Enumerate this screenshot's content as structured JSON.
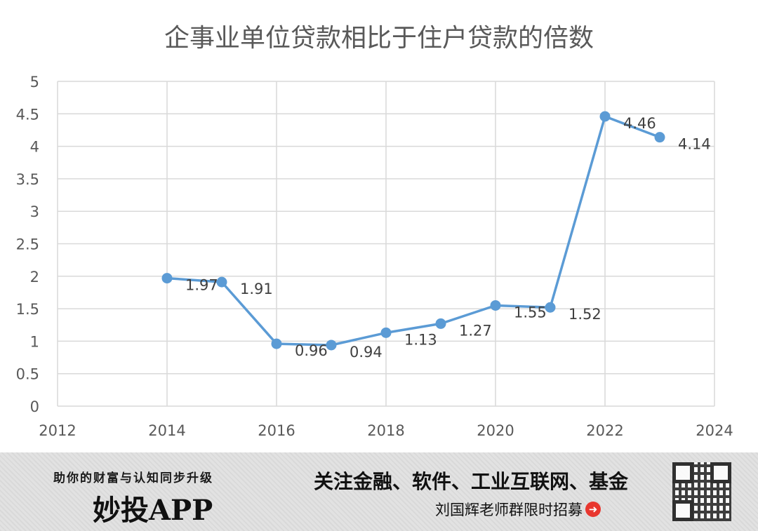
{
  "chart_data": {
    "type": "line",
    "title": "企事业单位贷款相比于住户贷款的倍数",
    "xlabel": "",
    "ylabel": "",
    "xlim": [
      2012,
      2024
    ],
    "ylim": [
      0,
      5
    ],
    "x_ticks": [
      2012,
      2014,
      2016,
      2018,
      2020,
      2022,
      2024
    ],
    "y_ticks": [
      0,
      0.5,
      1,
      1.5,
      2,
      2.5,
      3,
      3.5,
      4,
      4.5,
      5
    ],
    "y_tick_labels": [
      "0",
      "0.5",
      "1",
      "1.5",
      "2",
      "2.5",
      "3",
      "3.5",
      "4",
      "4.5",
      "5"
    ],
    "grid": true,
    "legend": "none",
    "series": [
      {
        "color": "#5b9bd5",
        "x": [
          2014,
          2015,
          2016,
          2017,
          2018,
          2019,
          2020,
          2021,
          2022,
          2023
        ],
        "values": [
          1.97,
          1.91,
          0.96,
          0.94,
          1.13,
          1.27,
          1.55,
          1.52,
          4.46,
          4.14
        ],
        "data_labels": [
          "1.97",
          "1.91",
          "0.96",
          "0.94",
          "1.13",
          "1.27",
          "1.55",
          "1.52",
          "4.46",
          "4.14"
        ]
      }
    ]
  },
  "footer": {
    "slogan": "助你的财富与认知同步升级",
    "app_name": "妙投APP",
    "focus": "关注金融、软件、工业互联网、基金",
    "recruit": "刘国辉老师群限时招募",
    "arrow_icon": "arrow-right-circle-icon",
    "qr_icon": "qr-code-icon"
  }
}
